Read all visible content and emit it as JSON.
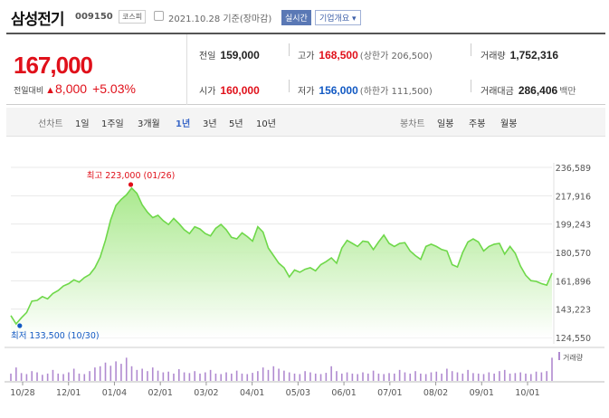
{
  "header": {
    "stock_name": "삼성전기",
    "stock_code": "009150",
    "market": "코스피",
    "date_text": "2021.10.28 기준(장마감)",
    "realtime_label": "실시간",
    "company_info_label": "기업개요 ▾"
  },
  "summary": {
    "price": "167,000",
    "change_label": "전일대비",
    "change_arrow": "▲",
    "change_value": "8,000",
    "change_pct": "+5.03%",
    "prev_close": {
      "label": "전일",
      "value": "159,000"
    },
    "high": {
      "label": "고가",
      "value": "168,500",
      "sub": "(상한가 206,500)"
    },
    "volume": {
      "label": "거래량",
      "value": "1,752,316"
    },
    "open": {
      "label": "시가",
      "value": "160,000"
    },
    "low": {
      "label": "저가",
      "value": "156,000",
      "sub": "(하한가 111,500)"
    },
    "trade_amount": {
      "label": "거래대금",
      "value": "286,406",
      "unit": "백만"
    }
  },
  "tabs": {
    "line_group": "선차트",
    "line_items": [
      "1일",
      "1주일",
      "3개월",
      "1년",
      "3년",
      "5년",
      "10년"
    ],
    "active": "1년",
    "candle_group": "봉차트",
    "candle_items": [
      "일봉",
      "주봉",
      "월봉"
    ]
  },
  "colors": {
    "up": "#e0101a",
    "down": "#1259c3",
    "line": "#6fd84a",
    "accent": "#3c69c8"
  },
  "chart_data": {
    "type": "area",
    "y_ticks": [
      "236,589",
      "217,916",
      "199,243",
      "180,570",
      "161,896",
      "143,223",
      "124,550"
    ],
    "ylim": [
      124550,
      236589
    ],
    "x_ticks": [
      "10/28",
      "12/01",
      "01/04",
      "02/01",
      "03/02",
      "04/01",
      "05/03",
      "06/01",
      "07/01",
      "08/02",
      "09/01",
      "10/01"
    ],
    "high_label": "최고 223,000 (01/26)",
    "low_label": "최저 133,500 (10/30)",
    "high_value": 223000,
    "low_value": 133500,
    "volume_label": "거래량",
    "series": [
      {
        "name": "price",
        "values": [
          139000,
          133500,
          137500,
          141000,
          148500,
          149000,
          151500,
          150000,
          153500,
          155500,
          158500,
          160000,
          162500,
          161000,
          164000,
          166000,
          170500,
          177500,
          188500,
          202000,
          211500,
          215500,
          218500,
          223000,
          219500,
          212000,
          207000,
          203500,
          205000,
          201500,
          199000,
          203000,
          199500,
          195500,
          193000,
          197500,
          196000,
          193000,
          191500,
          196500,
          199000,
          195500,
          190500,
          189500,
          193500,
          191000,
          188000,
          197500,
          194000,
          183500,
          178500,
          173500,
          170500,
          164500,
          169000,
          167500,
          169500,
          170500,
          168500,
          172500,
          174500,
          177000,
          173500,
          183500,
          188500,
          186500,
          184500,
          188000,
          187500,
          182500,
          187500,
          192000,
          186500,
          184500,
          186500,
          187000,
          181500,
          178500,
          176000,
          184500,
          186000,
          184500,
          182500,
          181500,
          172500,
          171000,
          180500,
          187500,
          189500,
          187500,
          181500,
          184500,
          186000,
          186500,
          179500,
          184500,
          180000,
          171500,
          165500,
          162000,
          161500,
          160000,
          159000,
          167000
        ]
      }
    ],
    "volume": [
      0.3,
      0.55,
      0.32,
      0.28,
      0.4,
      0.35,
      0.25,
      0.3,
      0.45,
      0.3,
      0.28,
      0.35,
      0.5,
      0.3,
      0.28,
      0.4,
      0.55,
      0.6,
      0.75,
      0.62,
      0.8,
      0.7,
      0.95,
      0.6,
      0.45,
      0.5,
      0.4,
      0.55,
      0.42,
      0.35,
      0.38,
      0.3,
      0.48,
      0.35,
      0.32,
      0.4,
      0.3,
      0.35,
      0.45,
      0.3,
      0.28,
      0.35,
      0.3,
      0.42,
      0.3,
      0.28,
      0.33,
      0.4,
      0.55,
      0.45,
      0.6,
      0.5,
      0.42,
      0.35,
      0.3,
      0.28,
      0.4,
      0.35,
      0.3,
      0.28,
      0.33,
      0.6,
      0.4,
      0.3,
      0.35,
      0.3,
      0.28,
      0.35,
      0.3,
      0.42,
      0.3,
      0.28,
      0.32,
      0.3,
      0.45,
      0.35,
      0.3,
      0.4,
      0.3,
      0.28,
      0.35,
      0.38,
      0.3,
      0.5,
      0.4,
      0.35,
      0.3,
      0.45,
      0.32,
      0.3,
      0.28,
      0.35,
      0.3,
      0.4,
      0.45,
      0.3,
      0.32,
      0.35,
      0.3,
      0.28,
      0.38,
      0.35,
      0.4,
      0.95
    ]
  }
}
